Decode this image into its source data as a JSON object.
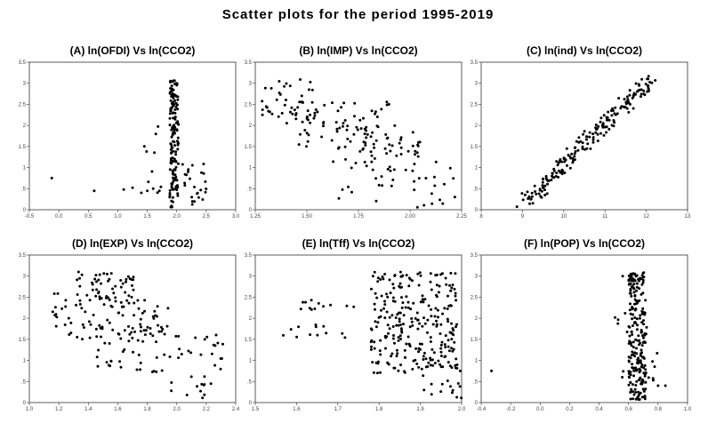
{
  "title": "Scatter plots for the period 1995-2019",
  "chart_data": [
    {
      "type": "scatter",
      "title": "(A) ln(OFDI) Vs ln(CCO2)",
      "xlim": [
        -0.5,
        3.0
      ],
      "ylim": [
        0,
        3.5
      ],
      "xticks": [
        "-0.5",
        "0.0",
        "0.5",
        "1.0",
        "1.5",
        "2.0",
        "2.5",
        "3.0"
      ],
      "yticks": [
        "0",
        ".5",
        "1",
        "1.5",
        "2",
        "2.5",
        "3",
        "3.5"
      ],
      "gen": [
        {
          "n": 150,
          "x": [
            1.88,
            2.03
          ],
          "y": [
            0.05,
            3.1
          ]
        },
        {
          "n": 25,
          "x": [
            2.05,
            2.55
          ],
          "y": [
            0.1,
            1.1
          ]
        },
        {
          "n": 10,
          "x": [
            1.45,
            1.85
          ],
          "y": [
            0.4,
            2.1
          ]
        }
      ],
      "points": [
        [
          -0.12,
          0.75
        ],
        [
          0.6,
          0.45
        ],
        [
          1.1,
          0.48
        ],
        [
          1.25,
          0.52
        ],
        [
          1.4,
          0.4
        ],
        [
          1.5,
          0.45
        ],
        [
          1.6,
          0.5
        ]
      ]
    },
    {
      "type": "scatter",
      "title": "(B) ln(IMP) Vs ln(CCO2)",
      "xlim": [
        1.25,
        2.25
      ],
      "ylim": [
        0,
        3.5
      ],
      "xticks": [
        "1.25",
        "1.50",
        "1.75",
        "2.00",
        "2.25"
      ],
      "yticks": [
        "0",
        ".5",
        "1",
        "1.5",
        "2",
        "2.5",
        "3",
        "3.5"
      ],
      "gen": [
        {
          "n": 40,
          "x": [
            1.28,
            1.55
          ],
          "y": [
            2.2,
            3.1
          ]
        },
        {
          "n": 60,
          "x": [
            1.4,
            1.9
          ],
          "y": [
            1.5,
            2.6
          ]
        },
        {
          "n": 50,
          "x": [
            1.6,
            2.05
          ],
          "y": [
            0.9,
            2.0
          ]
        },
        {
          "n": 40,
          "x": [
            1.65,
            2.22
          ],
          "y": [
            0.05,
            1.3
          ]
        }
      ],
      "points": []
    },
    {
      "type": "scatter",
      "title": "(C) ln(ind) Vs ln(CCO2)",
      "xlim": [
        8,
        13
      ],
      "ylim": [
        0,
        3.5
      ],
      "xticks": [
        "8",
        "9",
        "10",
        "11",
        "12",
        "13"
      ],
      "yticks": [
        "0",
        ".5",
        "1",
        "1.5",
        "2",
        "2.5",
        "3",
        "3.5"
      ],
      "gen": [
        {
          "n": 200,
          "x": [
            9.0,
            12.1
          ],
          "y": [
            0.1,
            3.1
          ],
          "band": true
        }
      ],
      "points": []
    },
    {
      "type": "scatter",
      "title": "(D) ln(EXP) Vs ln(CCO2)",
      "xlim": [
        1.0,
        2.4
      ],
      "ylim": [
        0,
        3.5
      ],
      "xticks": [
        "1.0",
        "1.2",
        "1.4",
        "1.6",
        "1.8",
        "2.0",
        "2.2",
        "2.4"
      ],
      "yticks": [
        "0",
        ".5",
        "1",
        "1.5",
        "2",
        "2.5",
        "3",
        "3.5"
      ],
      "gen": [
        {
          "n": 50,
          "x": [
            1.32,
            1.72
          ],
          "y": [
            2.4,
            3.1
          ]
        },
        {
          "n": 80,
          "x": [
            1.15,
            1.95
          ],
          "y": [
            1.5,
            2.6
          ]
        },
        {
          "n": 45,
          "x": [
            1.45,
            1.95
          ],
          "y": [
            0.7,
            1.8
          ]
        },
        {
          "n": 35,
          "x": [
            1.95,
            2.32
          ],
          "y": [
            0.05,
            1.7
          ]
        }
      ],
      "points": []
    },
    {
      "type": "scatter",
      "title": "(E) ln(Tff) Vs ln(CCO2)",
      "xlim": [
        1.5,
        2.0
      ],
      "ylim": [
        0,
        3.5
      ],
      "xticks": [
        "1.5",
        "1.6",
        "1.7",
        "1.8",
        "1.9",
        "2.0"
      ],
      "yticks": [
        "0",
        ".5",
        "1",
        "1.5",
        "2",
        "2.5",
        "3",
        "3.5"
      ],
      "gen": [
        {
          "n": 12,
          "x": [
            1.61,
            1.75
          ],
          "y": [
            2.2,
            2.45
          ]
        },
        {
          "n": 12,
          "x": [
            1.56,
            1.72
          ],
          "y": [
            1.5,
            1.85
          ]
        },
        {
          "n": 260,
          "x": [
            1.78,
            1.99
          ],
          "y": [
            0.7,
            3.1
          ]
        },
        {
          "n": 25,
          "x": [
            1.9,
            2.0
          ],
          "y": [
            0.05,
            1.2
          ]
        }
      ],
      "points": []
    },
    {
      "type": "scatter",
      "title": "(F) ln(POP) Vs ln(CCO2)",
      "xlim": [
        -0.4,
        1.0
      ],
      "ylim": [
        0,
        3.5
      ],
      "xticks": [
        "-0.4",
        "-0.2",
        "0.0",
        "0.2",
        "0.4",
        "0.6",
        "0.8",
        "1.0"
      ],
      "yticks": [
        "0",
        ".5",
        "1",
        "1.5",
        "2",
        "2.5",
        "3",
        "3.5"
      ],
      "gen": [
        {
          "n": 220,
          "x": [
            0.6,
            0.72
          ],
          "y": [
            0.05,
            3.1
          ]
        },
        {
          "n": 20,
          "x": [
            0.5,
            0.8
          ],
          "y": [
            0.5,
            2.2
          ]
        }
      ],
      "points": [
        [
          0.56,
          3.0
        ],
        [
          0.8,
          0.4
        ],
        [
          0.85,
          0.4
        ],
        [
          -0.33,
          0.75
        ]
      ]
    }
  ]
}
